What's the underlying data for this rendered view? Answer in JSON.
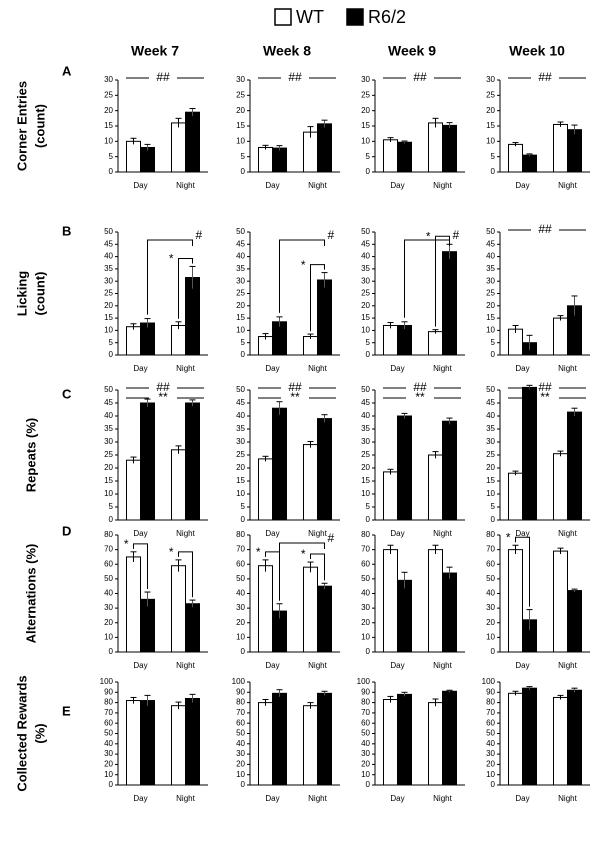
{
  "columns": [
    "Week 7",
    "Week 8",
    "Week 9",
    "Week 10"
  ],
  "rows": [
    {
      "letter": "A",
      "ylabel": [
        "Corner Entries",
        "(count)"
      ]
    },
    {
      "letter": "B",
      "ylabel": [
        "Licking",
        "(count)"
      ]
    },
    {
      "letter": "C",
      "ylabel": [
        "Repeats (%)"
      ]
    },
    {
      "letter": "D",
      "ylabel": [
        "Alternations (%)"
      ]
    },
    {
      "letter": "E",
      "ylabel": [
        "Collected Rewards",
        "(%)"
      ]
    }
  ],
  "chart_data": [
    {
      "type": "bar",
      "categories": [
        "Day",
        "Night"
      ],
      "ylim": [
        0,
        30
      ],
      "yticks": [
        0,
        5,
        10,
        15,
        20,
        25,
        30
      ],
      "series": [
        {
          "name": "WT",
          "color": "#ffffff",
          "values": [
            10,
            16
          ],
          "errors": [
            1,
            1.5
          ]
        },
        {
          "name": "R6/2",
          "color": "#000000",
          "values": [
            8,
            19.5
          ],
          "errors": [
            1,
            1.2
          ]
        }
      ],
      "annotations": [
        {
          "text": "##"
        }
      ]
    },
    {
      "type": "bar",
      "categories": [
        "Day",
        "Night"
      ],
      "ylim": [
        0,
        30
      ],
      "yticks": [
        0,
        5,
        10,
        15,
        20,
        25,
        30
      ],
      "series": [
        {
          "name": "WT",
          "color": "#ffffff",
          "values": [
            8,
            13
          ],
          "errors": [
            0.7,
            1.8
          ]
        },
        {
          "name": "R6/2",
          "color": "#000000",
          "values": [
            7.8,
            15.7
          ],
          "errors": [
            0.8,
            1.2
          ]
        }
      ],
      "annotations": [
        {
          "text": "##"
        }
      ]
    },
    {
      "type": "bar",
      "categories": [
        "Day",
        "Night"
      ],
      "ylim": [
        0,
        30
      ],
      "yticks": [
        0,
        5,
        10,
        15,
        20,
        25,
        30
      ],
      "series": [
        {
          "name": "WT",
          "color": "#ffffff",
          "values": [
            10.5,
            16
          ],
          "errors": [
            0.7,
            1.5
          ]
        },
        {
          "name": "R6/2",
          "color": "#000000",
          "values": [
            9.7,
            15.2
          ],
          "errors": [
            0.4,
            0.9
          ]
        }
      ],
      "annotations": [
        {
          "text": "##"
        }
      ]
    },
    {
      "type": "bar",
      "categories": [
        "Day",
        "Night"
      ],
      "ylim": [
        0,
        30
      ],
      "yticks": [
        0,
        5,
        10,
        15,
        20,
        25,
        30
      ],
      "series": [
        {
          "name": "WT",
          "color": "#ffffff",
          "values": [
            9,
            15.5
          ],
          "errors": [
            0.6,
            0.8
          ]
        },
        {
          "name": "R6/2",
          "color": "#000000",
          "values": [
            5.5,
            13.8
          ],
          "errors": [
            0.4,
            1.5
          ]
        }
      ],
      "annotations": [
        {
          "text": "##"
        }
      ]
    },
    {
      "type": "bar",
      "categories": [
        "Day",
        "Night"
      ],
      "ylim": [
        0,
        50
      ],
      "yticks": [
        0,
        5,
        10,
        15,
        20,
        25,
        30,
        35,
        40,
        45,
        50
      ],
      "series": [
        {
          "name": "WT",
          "color": "#ffffff",
          "values": [
            11.5,
            12
          ],
          "errors": [
            1.2,
            1.5
          ]
        },
        {
          "name": "R6/2",
          "color": "#000000",
          "values": [
            13,
            31.5
          ],
          "errors": [
            1.8,
            4.5
          ]
        }
      ],
      "annotations": [
        {
          "text": "#"
        },
        {
          "text": "*",
          "at": "Night"
        }
      ]
    },
    {
      "type": "bar",
      "categories": [
        "Day",
        "Night"
      ],
      "ylim": [
        0,
        50
      ],
      "yticks": [
        0,
        5,
        10,
        15,
        20,
        25,
        30,
        35,
        40,
        45,
        50
      ],
      "series": [
        {
          "name": "WT",
          "color": "#ffffff",
          "values": [
            7.5,
            7.5
          ],
          "errors": [
            1.2,
            1
          ]
        },
        {
          "name": "R6/2",
          "color": "#000000",
          "values": [
            13.5,
            30.5
          ],
          "errors": [
            2,
            3
          ]
        }
      ],
      "annotations": [
        {
          "text": "#"
        },
        {
          "text": "*",
          "at": "Night"
        }
      ]
    },
    {
      "type": "bar",
      "categories": [
        "Day",
        "Night"
      ],
      "ylim": [
        0,
        50
      ],
      "yticks": [
        0,
        5,
        10,
        15,
        20,
        25,
        30,
        35,
        40,
        45,
        50
      ],
      "series": [
        {
          "name": "WT",
          "color": "#ffffff",
          "values": [
            12,
            9.5
          ],
          "errors": [
            1.2,
            0.8
          ]
        },
        {
          "name": "R6/2",
          "color": "#000000",
          "values": [
            12,
            42
          ],
          "errors": [
            1.5,
            3
          ]
        }
      ],
      "annotations": [
        {
          "text": "#"
        },
        {
          "text": "*",
          "at": "Night"
        }
      ]
    },
    {
      "type": "bar",
      "categories": [
        "Day",
        "Night"
      ],
      "ylim": [
        0,
        50
      ],
      "yticks": [
        0,
        5,
        10,
        15,
        20,
        25,
        30,
        35,
        40,
        45,
        50
      ],
      "series": [
        {
          "name": "WT",
          "color": "#ffffff",
          "values": [
            10.5,
            15
          ],
          "errors": [
            1.5,
            1
          ]
        },
        {
          "name": "R6/2",
          "color": "#000000",
          "values": [
            5,
            20
          ],
          "errors": [
            3,
            4
          ]
        }
      ],
      "annotations": [
        {
          "text": "##"
        }
      ]
    },
    {
      "type": "bar",
      "categories": [
        "Day",
        "Night"
      ],
      "ylim": [
        0,
        50
      ],
      "yticks": [
        0,
        5,
        10,
        15,
        20,
        25,
        30,
        35,
        40,
        45,
        50
      ],
      "series": [
        {
          "name": "WT",
          "color": "#ffffff",
          "values": [
            23,
            27
          ],
          "errors": [
            1.2,
            1.5
          ]
        },
        {
          "name": "R6/2",
          "color": "#000000",
          "values": [
            45,
            45
          ],
          "errors": [
            1.5,
            1.2
          ]
        }
      ],
      "annotations": [
        {
          "text": "##"
        },
        {
          "text": "**"
        }
      ]
    },
    {
      "type": "bar",
      "categories": [
        "Day",
        "Night"
      ],
      "ylim": [
        0,
        50
      ],
      "yticks": [
        0,
        5,
        10,
        15,
        20,
        25,
        30,
        35,
        40,
        45,
        50
      ],
      "series": [
        {
          "name": "WT",
          "color": "#ffffff",
          "values": [
            23.5,
            29
          ],
          "errors": [
            1,
            1.2
          ]
        },
        {
          "name": "R6/2",
          "color": "#000000",
          "values": [
            43,
            39
          ],
          "errors": [
            2.5,
            1.5
          ]
        }
      ],
      "annotations": [
        {
          "text": "##"
        },
        {
          "text": "**"
        }
      ]
    },
    {
      "type": "bar",
      "categories": [
        "Day",
        "Night"
      ],
      "ylim": [
        0,
        50
      ],
      "yticks": [
        0,
        5,
        10,
        15,
        20,
        25,
        30,
        35,
        40,
        45,
        50
      ],
      "series": [
        {
          "name": "WT",
          "color": "#ffffff",
          "values": [
            18.5,
            25
          ],
          "errors": [
            1,
            1.3
          ]
        },
        {
          "name": "R6/2",
          "color": "#000000",
          "values": [
            40,
            38
          ],
          "errors": [
            1,
            1.2
          ]
        }
      ],
      "annotations": [
        {
          "text": "##"
        },
        {
          "text": "**"
        }
      ]
    },
    {
      "type": "bar",
      "categories": [
        "Day",
        "Night"
      ],
      "ylim": [
        0,
        50
      ],
      "yticks": [
        0,
        5,
        10,
        15,
        20,
        25,
        30,
        35,
        40,
        45,
        50
      ],
      "series": [
        {
          "name": "WT",
          "color": "#ffffff",
          "values": [
            18,
            25.5
          ],
          "errors": [
            0.8,
            1
          ]
        },
        {
          "name": "R6/2",
          "color": "#000000",
          "values": [
            51,
            41.5
          ],
          "errors": [
            0.8,
            1.5
          ]
        }
      ],
      "annotations": [
        {
          "text": "##"
        },
        {
          "text": "**"
        }
      ]
    },
    {
      "type": "bar",
      "categories": [
        "Day",
        "Night"
      ],
      "ylim": [
        0,
        80
      ],
      "yticks": [
        0,
        10,
        20,
        30,
        40,
        50,
        60,
        70,
        80
      ],
      "series": [
        {
          "name": "WT",
          "color": "#ffffff",
          "values": [
            65,
            59
          ],
          "errors": [
            3.5,
            4
          ]
        },
        {
          "name": "R6/2",
          "color": "#000000",
          "values": [
            36,
            33
          ],
          "errors": [
            5,
            2.5
          ]
        }
      ],
      "annotations": [
        {
          "text": "*",
          "at": "Day"
        },
        {
          "text": "*",
          "at": "Night"
        }
      ]
    },
    {
      "type": "bar",
      "categories": [
        "Day",
        "Night"
      ],
      "ylim": [
        0,
        80
      ],
      "yticks": [
        0,
        10,
        20,
        30,
        40,
        50,
        60,
        70,
        80
      ],
      "series": [
        {
          "name": "WT",
          "color": "#ffffff",
          "values": [
            59,
            58
          ],
          "errors": [
            4,
            3.5
          ]
        },
        {
          "name": "R6/2",
          "color": "#000000",
          "values": [
            28,
            45
          ],
          "errors": [
            5,
            2
          ]
        }
      ],
      "annotations": [
        {
          "text": "*",
          "at": "Day"
        },
        {
          "text": "#"
        },
        {
          "text": "*",
          "at": "Night"
        }
      ]
    },
    {
      "type": "bar",
      "categories": [
        "Day",
        "Night"
      ],
      "ylim": [
        0,
        80
      ],
      "yticks": [
        0,
        10,
        20,
        30,
        40,
        50,
        60,
        70,
        80
      ],
      "series": [
        {
          "name": "WT",
          "color": "#ffffff",
          "values": [
            70,
            70
          ],
          "errors": [
            3,
            3
          ]
        },
        {
          "name": "R6/2",
          "color": "#000000",
          "values": [
            49,
            54
          ],
          "errors": [
            5.5,
            4
          ]
        }
      ],
      "annotations": []
    },
    {
      "type": "bar",
      "categories": [
        "Day",
        "Night"
      ],
      "ylim": [
        0,
        80
      ],
      "yticks": [
        0,
        10,
        20,
        30,
        40,
        50,
        60,
        70,
        80
      ],
      "series": [
        {
          "name": "WT",
          "color": "#ffffff",
          "values": [
            70,
            69
          ],
          "errors": [
            3,
            2
          ]
        },
        {
          "name": "R6/2",
          "color": "#000000",
          "values": [
            22,
            42
          ],
          "errors": [
            7,
            1
          ]
        }
      ],
      "annotations": [
        {
          "text": "*",
          "at": "Day"
        }
      ]
    },
    {
      "type": "bar",
      "categories": [
        "Day",
        "Night"
      ],
      "ylim": [
        0,
        100
      ],
      "yticks": [
        0,
        10,
        20,
        30,
        40,
        50,
        60,
        70,
        80,
        90,
        100
      ],
      "series": [
        {
          "name": "WT",
          "color": "#ffffff",
          "values": [
            82,
            77
          ],
          "errors": [
            3,
            3.5
          ]
        },
        {
          "name": "R6/2",
          "color": "#000000",
          "values": [
            82,
            84
          ],
          "errors": [
            5,
            4
          ]
        }
      ],
      "annotations": []
    },
    {
      "type": "bar",
      "categories": [
        "Day",
        "Night"
      ],
      "ylim": [
        0,
        100
      ],
      "yticks": [
        0,
        10,
        20,
        30,
        40,
        50,
        60,
        70,
        80,
        90,
        100
      ],
      "series": [
        {
          "name": "WT",
          "color": "#ffffff",
          "values": [
            80,
            77
          ],
          "errors": [
            3,
            3
          ]
        },
        {
          "name": "R6/2",
          "color": "#000000",
          "values": [
            89,
            89
          ],
          "errors": [
            3.5,
            2
          ]
        }
      ],
      "annotations": []
    },
    {
      "type": "bar",
      "categories": [
        "Day",
        "Night"
      ],
      "ylim": [
        0,
        100
      ],
      "yticks": [
        0,
        10,
        20,
        30,
        40,
        50,
        60,
        70,
        80,
        90,
        100
      ],
      "series": [
        {
          "name": "WT",
          "color": "#ffffff",
          "values": [
            83,
            80
          ],
          "errors": [
            3,
            3.5
          ]
        },
        {
          "name": "R6/2",
          "color": "#000000",
          "values": [
            88,
            91
          ],
          "errors": [
            2,
            1
          ]
        }
      ],
      "annotations": []
    },
    {
      "type": "bar",
      "categories": [
        "Day",
        "Night"
      ],
      "ylim": [
        0,
        100
      ],
      "yticks": [
        0,
        10,
        20,
        30,
        40,
        50,
        60,
        70,
        80,
        90,
        100
      ],
      "series": [
        {
          "name": "WT",
          "color": "#ffffff",
          "values": [
            89,
            85
          ],
          "errors": [
            2,
            2
          ]
        },
        {
          "name": "R6/2",
          "color": "#000000",
          "values": [
            94,
            92
          ],
          "errors": [
            1.5,
            2
          ]
        }
      ],
      "annotations": []
    }
  ]
}
